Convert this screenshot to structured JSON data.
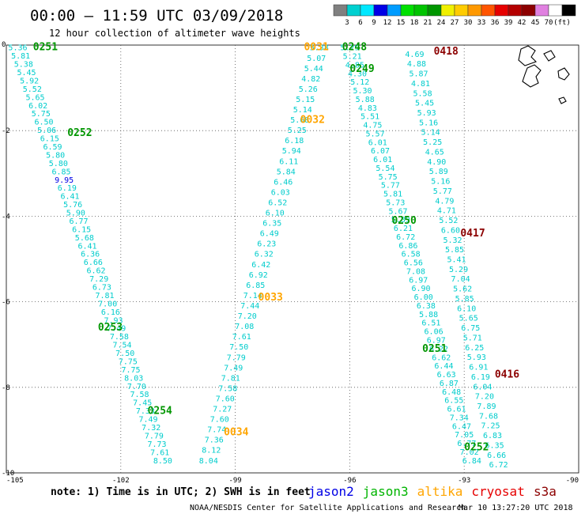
{
  "header": {
    "title": "00:00 – 11:59 UTC 03/09/2018",
    "subtitle": "12 hour collection of altimeter wave heights"
  },
  "colorbar": {
    "colors": [
      "#808080",
      "#00d0d0",
      "#00e8ff",
      "#0000e6",
      "#009cff",
      "#00e000",
      "#00c400",
      "#009600",
      "#f0f000",
      "#ffcc00",
      "#ff9900",
      "#ff5500",
      "#e60000",
      "#b40000",
      "#8c0000",
      "#e080e0",
      "#ffffff",
      "#000000"
    ],
    "labels": [
      "3",
      "6",
      "9",
      "12",
      "15",
      "18",
      "21",
      "24",
      "27",
      "30",
      "33",
      "36",
      "39",
      "42",
      "45",
      "70",
      "(ft)"
    ]
  },
  "footer": {
    "note": "note: 1) Time is in UTC; 2) SWH is in feet",
    "legend": [
      {
        "name": "jason2",
        "color": "#0000e6"
      },
      {
        "name": "jason3",
        "color": "#00b400"
      },
      {
        "name": "altika",
        "color": "#ffa500"
      },
      {
        "name": "cryosat",
        "color": "#e60000"
      },
      {
        "name": "s3a",
        "color": "#8c0000"
      }
    ],
    "credit": "NOAA/NESDIS Center for Satellite Applications and Research",
    "timestamp": "Mar 10 13:27:20 UTC 2018"
  },
  "chart_data": {
    "type": "scatter",
    "xlim": [
      -105,
      -90
    ],
    "ylim": [
      -10,
      0
    ],
    "xticks": [
      "-105",
      "-102",
      "-99",
      "-96",
      "-93",
      "-90"
    ],
    "yticks": [
      "0",
      "-2",
      "-4",
      "-6",
      "-8",
      "-10"
    ],
    "grid": true,
    "track_color": "#00cccc",
    "tracks": [
      {
        "label_color": "#0000e6",
        "start": [
          -104.7,
          -0.05
        ],
        "end": [
          -100.9,
          -9.7
        ],
        "values": [
          "5.36",
          "5.81",
          "5.38",
          "5.45",
          "5.92",
          "5.52",
          "5.65",
          "6.02",
          "5.75",
          "6.50",
          "5.06",
          "6.15",
          "6.59",
          "5.80",
          "5.80",
          "6.85",
          "9.95",
          "6.19",
          "6.41",
          "5.76",
          "5.90",
          "6.77",
          "6.15",
          "5.68",
          "6.41",
          "6.36",
          "6.66",
          "6.62",
          "7.29",
          "6.73",
          "7.81",
          "7.00",
          "6.16",
          "7.93",
          "7.49",
          "7.58",
          "7.54",
          "7.50",
          "7.75",
          "7.75",
          "8.03",
          "7.70",
          "7.58",
          "7.45",
          "7.33",
          "7.49",
          "7.32",
          "7.79",
          "7.73",
          "7.61",
          "8.50"
        ]
      },
      {
        "label_color": "#00cccc",
        "start": [
          -96.8,
          -0.05
        ],
        "end": [
          -99.7,
          -9.7
        ],
        "values": [
          "5.38",
          "5.07",
          "5.44",
          "4.82",
          "5.26",
          "5.15",
          "5.14",
          "5.68",
          "5.25",
          "6.18",
          "5.94",
          "6.11",
          "5.84",
          "6.46",
          "6.03",
          "6.52",
          "6.10",
          "6.35",
          "6.49",
          "6.23",
          "6.32",
          "6.42",
          "6.92",
          "6.85",
          "7.14",
          "7.44",
          "7.20",
          "7.08",
          "7.61",
          "7.50",
          "7.79",
          "7.49",
          "7.81",
          "7.58",
          "7.60",
          "7.27",
          "7.60",
          "7.74",
          "7.36",
          "8.12",
          "8.04"
        ]
      },
      {
        "label_color": "#00cccc",
        "start": [
          -96.0,
          -0.05
        ],
        "end": [
          -92.8,
          -9.7
        ],
        "values": [
          "5.29",
          "5.21",
          "4.85",
          "4.30",
          "5.12",
          "5.30",
          "5.88",
          "4.83",
          "5.51",
          "4.75",
          "5.57",
          "6.01",
          "6.07",
          "6.01",
          "5.54",
          "5.75",
          "5.77",
          "5.81",
          "5.73",
          "5.67",
          "5.89",
          "6.21",
          "6.72",
          "6.86",
          "6.58",
          "6.56",
          "7.08",
          "6.97",
          "6.90",
          "6.00",
          "6.38",
          "5.88",
          "6.51",
          "6.06",
          "6.97",
          "6.22",
          "6.62",
          "6.44",
          "6.63",
          "6.87",
          "6.48",
          "6.55",
          "6.61",
          "7.34",
          "6.47",
          "7.05",
          "6.77",
          "7.02",
          "6.84"
        ]
      },
      {
        "label_color": "#00cccc",
        "start": [
          -94.3,
          -0.2
        ],
        "end": [
          -92.1,
          -9.8
        ],
        "values": [
          "4.69",
          "4.88",
          "5.87",
          "4.81",
          "5.58",
          "5.45",
          "5.93",
          "5.16",
          "5.14",
          "5.25",
          "4.65",
          "4.90",
          "5.89",
          "5.16",
          "5.77",
          "4.79",
          "4.71",
          "5.52",
          "6.60",
          "5.32",
          "5.85",
          "5.41",
          "5.29",
          "7.04",
          "5.62",
          "5.85",
          "6.10",
          "5.65",
          "6.75",
          "5.71",
          "6.25",
          "5.93",
          "6.91",
          "6.19",
          "6.04",
          "7.20",
          "7.89",
          "7.68",
          "7.25",
          "6.83",
          "6.35",
          "6.66",
          "6.72"
        ]
      }
    ],
    "pass_labels": [
      {
        "text": "0251",
        "color": "#009600",
        "x": -104.3,
        "y": -0.05
      },
      {
        "text": "0252",
        "color": "#009600",
        "x": -103.4,
        "y": -2.05
      },
      {
        "text": "0253",
        "color": "#009600",
        "x": -102.6,
        "y": -6.6
      },
      {
        "text": "0254",
        "color": "#009600",
        "x": -101.3,
        "y": -8.55
      },
      {
        "text": "0031",
        "color": "#ffa500",
        "x": -97.2,
        "y": -0.05
      },
      {
        "text": "0032",
        "color": "#ffa500",
        "x": -97.3,
        "y": -1.75
      },
      {
        "text": "0033",
        "color": "#ffa500",
        "x": -98.4,
        "y": -5.9
      },
      {
        "text": "0034",
        "color": "#ffa500",
        "x": -99.3,
        "y": -9.05
      },
      {
        "text": "0248",
        "color": "#009600",
        "x": -96.2,
        "y": -0.05
      },
      {
        "text": "0249",
        "color": "#009600",
        "x": -96.0,
        "y": -0.55
      },
      {
        "text": "0250",
        "color": "#009600",
        "x": -94.9,
        "y": -4.1
      },
      {
        "text": "0251",
        "color": "#009600",
        "x": -94.1,
        "y": -7.1
      },
      {
        "text": "0252",
        "color": "#009600",
        "x": -93.0,
        "y": -9.4
      },
      {
        "text": "0418",
        "color": "#8c0000",
        "x": -93.8,
        "y": -0.15
      },
      {
        "text": "0417",
        "color": "#8c0000",
        "x": -93.1,
        "y": -4.4
      },
      {
        "text": "0416",
        "color": "#8c0000",
        "x": -92.2,
        "y": -7.7
      }
    ]
  }
}
